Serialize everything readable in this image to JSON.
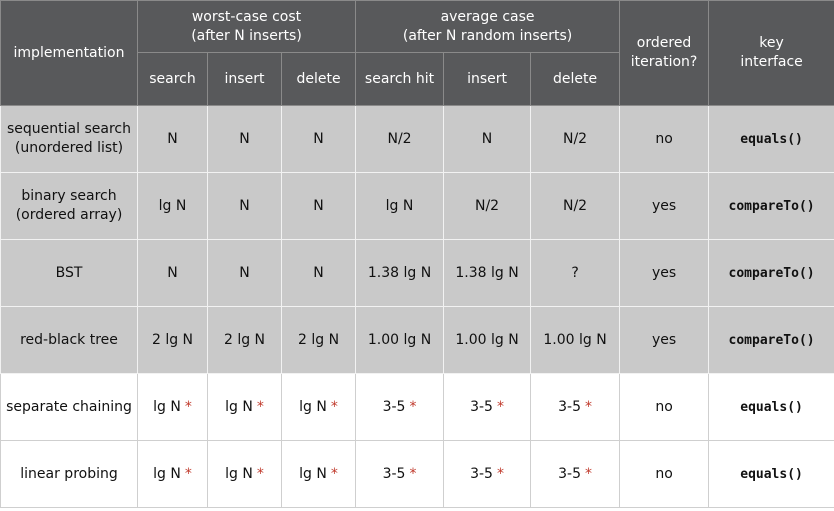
{
  "header": {
    "implementation": "implementation",
    "groups": [
      {
        "lines": [
          "worst-case cost",
          "(after N inserts)"
        ],
        "columns": [
          "search",
          "insert",
          "delete"
        ]
      },
      {
        "lines": [
          "average case",
          "(after N random inserts)"
        ],
        "columns": [
          "search hit",
          "insert",
          "delete"
        ]
      }
    ],
    "ordered": [
      "ordered",
      "iteration?"
    ],
    "key": [
      "key",
      "interface"
    ]
  },
  "rows": [
    {
      "name": [
        "sequential search",
        "(unordered list)"
      ],
      "cells": [
        [
          "N"
        ],
        [
          "N"
        ],
        [
          "N"
        ],
        [
          "N/2"
        ],
        [
          "N"
        ],
        [
          "N/2"
        ]
      ],
      "ordered": "no",
      "key": "equals()"
    },
    {
      "name": [
        "binary search",
        "(ordered array)"
      ],
      "cells": [
        [
          "lg N"
        ],
        [
          "N"
        ],
        [
          "N"
        ],
        [
          "lg N"
        ],
        [
          "N/2"
        ],
        [
          "N/2"
        ]
      ],
      "ordered": "yes",
      "key": "compareTo()"
    },
    {
      "name": [
        "BST"
      ],
      "cells": [
        [
          "N"
        ],
        [
          "N"
        ],
        [
          "N"
        ],
        [
          "1.38 lg N"
        ],
        [
          "1.38 lg N"
        ],
        [
          "?"
        ]
      ],
      "ordered": "yes",
      "key": "compareTo()"
    },
    {
      "name": [
        "red-black tree"
      ],
      "cells": [
        [
          "2 lg N"
        ],
        [
          "2 lg N"
        ],
        [
          "2 lg N"
        ],
        [
          "1.00 lg N"
        ],
        [
          "1.00 lg N"
        ],
        [
          "1.00 lg N"
        ]
      ],
      "ordered": "yes",
      "key": "compareTo()"
    },
    {
      "name": [
        "separate chaining"
      ],
      "cells": [
        [
          "lg N",
          "*"
        ],
        [
          "lg N",
          "*"
        ],
        [
          "lg N",
          "*"
        ],
        [
          "3-5",
          "*"
        ],
        [
          "3-5",
          "*"
        ],
        [
          "3-5",
          "*"
        ]
      ],
      "ordered": "no",
      "key": "equals()"
    },
    {
      "name": [
        "linear probing"
      ],
      "cells": [
        [
          "lg N",
          "*"
        ],
        [
          "lg N",
          "*"
        ],
        [
          "lg N",
          "*"
        ],
        [
          "3-5",
          "*"
        ],
        [
          "3-5",
          "*"
        ],
        [
          "3-5",
          "*"
        ]
      ],
      "ordered": "no",
      "key": "equals()"
    }
  ]
}
